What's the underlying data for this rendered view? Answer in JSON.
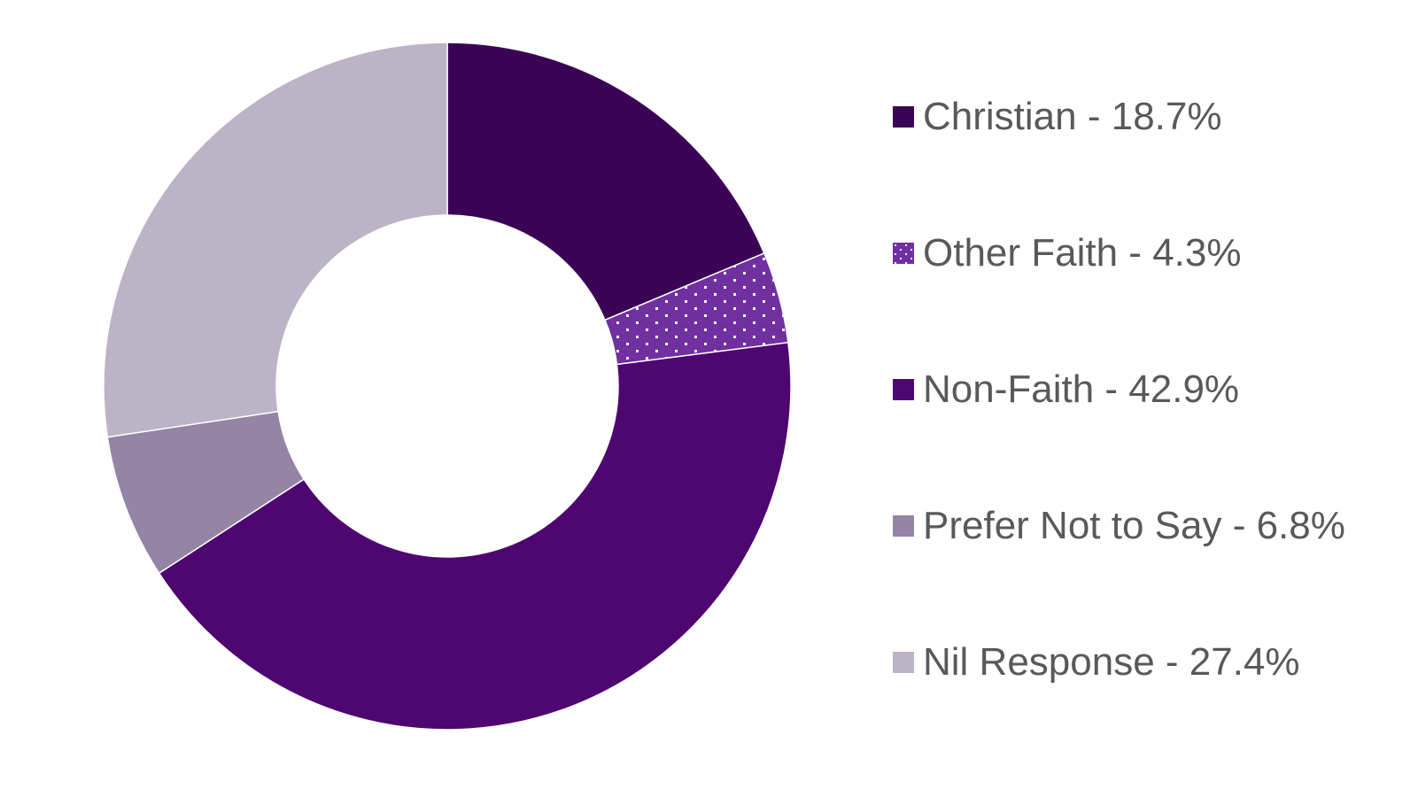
{
  "chart_data": {
    "type": "pie",
    "donut": true,
    "title": "",
    "categories": [
      "Christian",
      "Other Faith",
      "Non-Faith",
      "Prefer Not to Say",
      "Nil Response"
    ],
    "values": [
      18.7,
      4.3,
      42.9,
      6.8,
      27.4
    ],
    "unit": "%",
    "colors": [
      "#3b0355",
      "#7030a0",
      "#4e0670",
      "#9484a6",
      "#bbb3c6"
    ],
    "patterns": [
      "solid",
      "dotted",
      "solid",
      "solid",
      "solid"
    ],
    "legend_position": "right",
    "legend_labels": [
      "Christian - 18.7%",
      "Other Faith - 4.3%",
      "Non-Faith - 42.9%",
      "Prefer Not to Say - 6.8%",
      "Nil Response - 27.4%"
    ]
  }
}
